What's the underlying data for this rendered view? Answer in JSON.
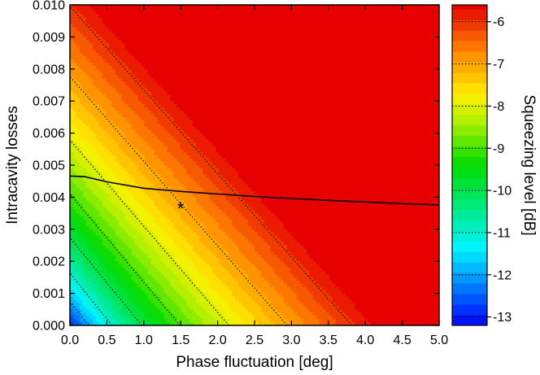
{
  "chart_data": {
    "type": "heatmap",
    "subtype": "filled-contour",
    "xlabel": "Phase fluctuation [deg]",
    "ylabel": "Intracavity losses",
    "colorbar_label": "Squeezing level [dB]",
    "xlim": [
      0,
      5
    ],
    "ylim": [
      0,
      0.01
    ],
    "clim": [
      -13.2,
      -5.6
    ],
    "x_ticks": [
      "0.0",
      "0.5",
      "1.0",
      "1.5",
      "2.0",
      "2.5",
      "3.0",
      "3.5",
      "4.0",
      "4.5",
      "5.0"
    ],
    "y_ticks": [
      "0.000",
      "0.001",
      "0.002",
      "0.003",
      "0.004",
      "0.005",
      "0.006",
      "0.007",
      "0.008",
      "0.009",
      "0.010"
    ],
    "colorbar_ticks": [
      "-6",
      "-7",
      "-8",
      "-9",
      "-10",
      "-11",
      "-12",
      "-13"
    ],
    "dotted_contour_levels": [
      -6,
      -7,
      -8,
      -9,
      -10,
      -11,
      -12,
      -13
    ],
    "threshold_curve": {
      "x": [
        0,
        0.2,
        0.5,
        1.0,
        1.5,
        2.0,
        2.5,
        3.0,
        3.5,
        4.0,
        4.5,
        5.0
      ],
      "y": [
        0.00466,
        0.00464,
        0.00448,
        0.00428,
        0.00418,
        0.0041,
        0.00402,
        0.00396,
        0.0039,
        0.00385,
        0.0038,
        0.00376
      ]
    },
    "marker": {
      "x": 1.5,
      "y": 0.00383,
      "symbol": "*"
    }
  }
}
